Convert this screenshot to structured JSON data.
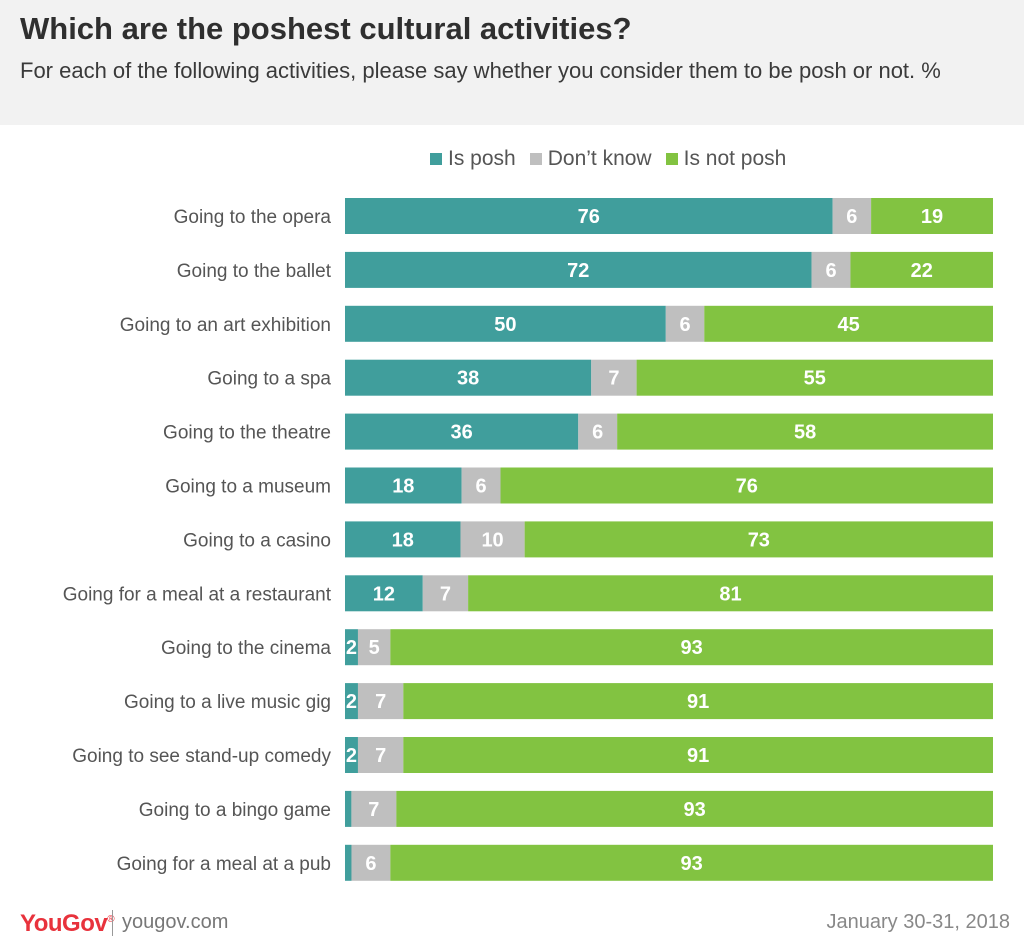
{
  "title": "Which are the poshest cultural activities?",
  "subtitle": "For each of the following activities, please say whether you consider them to be posh or not. %",
  "legend": [
    {
      "label": "Is posh",
      "color": "#409e9c"
    },
    {
      "label": "Don’t know",
      "color": "#bfbfbf"
    },
    {
      "label": "Is not posh",
      "color": "#82c341"
    }
  ],
  "footer": {
    "logo": "YouGov",
    "site": "yougov.com",
    "date": "January 30-31, 2018"
  },
  "chart_data": {
    "type": "bar",
    "orientation": "horizontal",
    "stacked": true,
    "unit": "%",
    "categories": [
      "Going to the opera",
      "Going to the ballet",
      "Going to an art exhibition",
      "Going to a spa",
      "Going to the theatre",
      "Going to a museum",
      "Going to a casino",
      "Going for a meal at a restaurant",
      "Going to the cinema",
      "Going to a live music gig",
      "Going to see stand-up comedy",
      "Going to a bingo game",
      "Going for a meal at a pub"
    ],
    "series": [
      {
        "name": "Is posh",
        "color": "#409e9c",
        "values": [
          76,
          72,
          50,
          38,
          36,
          18,
          18,
          12,
          2,
          2,
          2,
          1,
          1
        ],
        "labels": [
          "76",
          "72",
          "50",
          "38",
          "36",
          "18",
          "18",
          "12",
          "2",
          "2",
          "2",
          "",
          ""
        ]
      },
      {
        "name": "Don’t know",
        "color": "#bfbfbf",
        "values": [
          6,
          6,
          6,
          7,
          6,
          6,
          10,
          7,
          5,
          7,
          7,
          7,
          6
        ],
        "labels": [
          "6",
          "6",
          "6",
          "7",
          "6",
          "6",
          "10",
          "7",
          "5",
          "7",
          "7",
          "7",
          "6"
        ]
      },
      {
        "name": "Is not posh",
        "color": "#82c341",
        "values": [
          19,
          22,
          45,
          55,
          58,
          76,
          73,
          81,
          93,
          91,
          91,
          93,
          93
        ],
        "labels": [
          "19",
          "22",
          "45",
          "55",
          "58",
          "76",
          "73",
          "81",
          "93",
          "91",
          "91",
          "93",
          "93"
        ]
      }
    ]
  }
}
